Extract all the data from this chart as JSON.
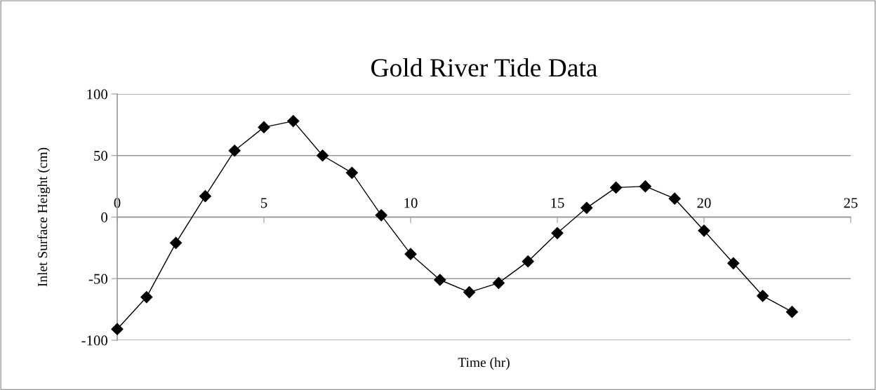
{
  "chart_data": {
    "type": "line",
    "title": "Gold River Tide Data",
    "xlabel": "Time (hr)",
    "ylabel": "Inlet Surface Height (cm)",
    "x": [
      0,
      1,
      2,
      3,
      4,
      5,
      6,
      7,
      8,
      9,
      10,
      11,
      12,
      13,
      14,
      15,
      16,
      17,
      18,
      19,
      20,
      21,
      22,
      23
    ],
    "series": [
      {
        "color": "#000000",
        "values": [
          -91,
          -65,
          -21,
          17,
          54,
          73,
          78,
          50,
          36,
          1.5,
          -30,
          -51,
          -61,
          -53.5,
          -36,
          -13,
          7.5,
          24,
          25,
          15,
          -11,
          -37.5,
          -64,
          -77
        ]
      }
    ],
    "xlim": [
      0,
      25
    ],
    "xticks": [
      0,
      5,
      10,
      15,
      20,
      25
    ],
    "ylim": [
      -100,
      100
    ],
    "yticks": [
      -100,
      -50,
      0,
      50,
      100
    ],
    "grid": "y",
    "marker": "diamond",
    "line_style": "solid",
    "legend": false
  }
}
